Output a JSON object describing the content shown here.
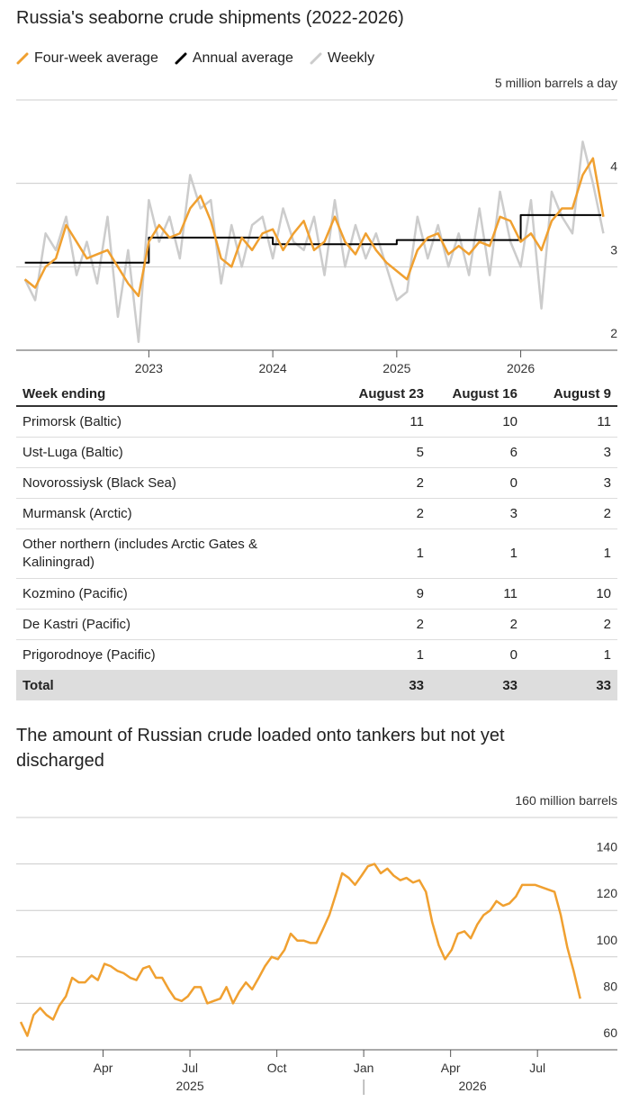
{
  "chart_data": [
    {
      "type": "line",
      "title": "Russia's seaborne crude shipments (2022-2026)",
      "legend": "top-left",
      "grid": true,
      "xlim": [
        2021.93,
        2026.78
      ],
      "xticks": [
        2023,
        2024,
        2025,
        2026
      ],
      "ylim": [
        2,
        5
      ],
      "yticks": [
        2,
        3,
        4,
        {
          "value": 5,
          "label": "5 million barrels a day"
        }
      ],
      "series": [
        {
          "name": "Four-week average",
          "color": "#f0a030",
          "x": [
            2022,
            2022.083,
            2022.167,
            2022.25,
            2022.333,
            2022.417,
            2022.5,
            2022.583,
            2022.667,
            2022.75,
            2022.833,
            2022.917,
            2023,
            2023.083,
            2023.167,
            2023.25,
            2023.333,
            2023.417,
            2023.5,
            2023.583,
            2023.667,
            2023.75,
            2023.833,
            2023.917,
            2024,
            2024.083,
            2024.167,
            2024.25,
            2024.333,
            2024.417,
            2024.5,
            2024.583,
            2024.667,
            2024.75,
            2024.833,
            2024.917,
            2025,
            2025.083,
            2025.167,
            2025.25,
            2025.333,
            2025.417,
            2025.5,
            2025.583,
            2025.667,
            2025.75,
            2025.833,
            2025.917,
            2026,
            2026.083,
            2026.167,
            2026.25,
            2026.333,
            2026.417,
            2026.5,
            2026.583,
            2026.667
          ],
          "values": [
            2.85,
            2.75,
            3.0,
            3.1,
            3.5,
            3.3,
            3.1,
            3.15,
            3.2,
            3.0,
            2.8,
            2.65,
            3.3,
            3.5,
            3.35,
            3.4,
            3.7,
            3.85,
            3.55,
            3.1,
            3.0,
            3.35,
            3.2,
            3.4,
            3.45,
            3.2,
            3.4,
            3.55,
            3.2,
            3.3,
            3.6,
            3.3,
            3.15,
            3.4,
            3.2,
            3.05,
            2.95,
            2.85,
            3.2,
            3.35,
            3.4,
            3.15,
            3.25,
            3.15,
            3.3,
            3.25,
            3.6,
            3.55,
            3.3,
            3.4,
            3.2,
            3.55,
            3.7,
            3.7,
            4.1,
            4.3,
            3.6
          ]
        },
        {
          "name": "Annual average",
          "color": "#000000",
          "x": [
            2022,
            2023,
            2023,
            2024,
            2024,
            2025,
            2025,
            2026,
            2026,
            2026.65
          ],
          "values": [
            3.05,
            3.05,
            3.35,
            3.35,
            3.27,
            3.27,
            3.32,
            3.32,
            3.62,
            3.62
          ]
        },
        {
          "name": "Weekly",
          "color": "#cccccc",
          "x": [
            2022,
            2022.083,
            2022.167,
            2022.25,
            2022.333,
            2022.417,
            2022.5,
            2022.583,
            2022.667,
            2022.75,
            2022.833,
            2022.917,
            2023,
            2023.083,
            2023.167,
            2023.25,
            2023.333,
            2023.417,
            2023.5,
            2023.583,
            2023.667,
            2023.75,
            2023.833,
            2023.917,
            2024,
            2024.083,
            2024.167,
            2024.25,
            2024.333,
            2024.417,
            2024.5,
            2024.583,
            2024.667,
            2024.75,
            2024.833,
            2024.917,
            2025,
            2025.083,
            2025.167,
            2025.25,
            2025.333,
            2025.417,
            2025.5,
            2025.583,
            2025.667,
            2025.75,
            2025.833,
            2025.917,
            2026,
            2026.083,
            2026.167,
            2026.25,
            2026.333,
            2026.417,
            2026.5,
            2026.583,
            2026.667
          ],
          "values": [
            2.85,
            2.6,
            3.4,
            3.2,
            3.6,
            2.9,
            3.3,
            2.8,
            3.6,
            2.4,
            3.2,
            2.1,
            3.8,
            3.3,
            3.6,
            3.1,
            4.1,
            3.7,
            3.8,
            2.8,
            3.5,
            3.0,
            3.5,
            3.6,
            3.1,
            3.7,
            3.3,
            3.2,
            3.6,
            2.9,
            3.8,
            3.0,
            3.5,
            3.1,
            3.4,
            3.0,
            2.6,
            2.7,
            3.6,
            3.1,
            3.5,
            3.0,
            3.4,
            2.9,
            3.7,
            2.9,
            3.9,
            3.3,
            3.0,
            3.8,
            2.5,
            3.9,
            3.6,
            3.4,
            4.5,
            4.0,
            3.4
          ]
        }
      ]
    },
    {
      "type": "line",
      "title": "The amount of Russian crude loaded onto tankers but not yet discharged",
      "grid": true,
      "xlim": [
        2025,
        2026.73
      ],
      "xticks": [
        {
          "value": 2025.25,
          "label": "Apr"
        },
        {
          "value": 2025.5,
          "label": "Jul"
        },
        {
          "value": 2025.75,
          "label": "Oct"
        },
        {
          "value": 2026,
          "label": "Jan"
        },
        {
          "value": 2026.25,
          "label": "Apr"
        },
        {
          "value": 2026.5,
          "label": "Jul"
        }
      ],
      "year_labels": [
        "2025",
        "2026"
      ],
      "ylim": [
        60,
        160
      ],
      "yticks": [
        60,
        80,
        100,
        120,
        140,
        {
          "value": 160,
          "label": "160 million barrels"
        }
      ],
      "series": [
        {
          "color": "#f0a030",
          "x": [
            2025.013,
            2025.032,
            2025.05,
            2025.069,
            2025.087,
            2025.106,
            2025.124,
            2025.143,
            2025.161,
            2025.18,
            2025.198,
            2025.217,
            2025.235,
            2025.254,
            2025.272,
            2025.291,
            2025.309,
            2025.328,
            2025.346,
            2025.365,
            2025.383,
            2025.402,
            2025.42,
            2025.439,
            2025.457,
            2025.476,
            2025.494,
            2025.513,
            2025.531,
            2025.55,
            2025.568,
            2025.587,
            2025.605,
            2025.624,
            2025.642,
            2025.661,
            2025.679,
            2025.698,
            2025.716,
            2025.735,
            2025.753,
            2025.772,
            2025.79,
            2025.809,
            2025.827,
            2025.846,
            2025.864,
            2025.883,
            2025.901,
            2025.92,
            2025.938,
            2025.957,
            2025.975,
            2025.994,
            2026.012,
            2026.031,
            2026.049,
            2026.068,
            2026.086,
            2026.105,
            2026.123,
            2026.142,
            2026.16,
            2026.179,
            2026.197,
            2026.216,
            2026.234,
            2026.253,
            2026.271,
            2026.29,
            2026.308,
            2026.327,
            2026.345,
            2026.364,
            2026.382,
            2026.401,
            2026.419,
            2026.438,
            2026.456,
            2026.475,
            2026.493,
            2026.512,
            2026.53,
            2026.549,
            2026.567,
            2026.586,
            2026.604,
            2026.623
          ],
          "values": [
            72,
            66,
            75,
            78,
            75,
            73,
            79,
            83,
            91,
            89,
            89,
            92,
            90,
            97,
            96,
            94,
            93,
            91,
            90,
            95,
            96,
            91,
            91,
            86,
            82,
            81,
            83,
            87,
            87,
            80,
            81,
            82,
            87,
            80,
            85,
            89,
            86,
            91,
            96,
            100,
            99,
            103,
            110,
            107,
            107,
            106,
            106,
            112,
            118,
            127,
            136,
            134,
            131,
            135,
            139,
            140,
            136,
            138,
            135,
            133,
            134,
            132,
            133,
            128,
            115,
            105,
            99,
            103,
            110,
            111,
            108,
            114,
            118,
            120,
            124,
            122,
            123,
            126,
            131,
            131,
            131,
            130,
            129,
            128,
            118,
            104,
            94,
            82
          ]
        }
      ]
    }
  ],
  "table": {
    "header": [
      "Week ending",
      "August 23",
      "August 16",
      "August 9"
    ],
    "rows": [
      [
        "Primorsk (Baltic)",
        11,
        10,
        11
      ],
      [
        "Ust-Luga (Baltic)",
        5,
        6,
        3
      ],
      [
        "Novorossiysk (Black Sea)",
        2,
        0,
        3
      ],
      [
        "Murmansk (Arctic)",
        2,
        3,
        2
      ],
      [
        "Other northern (includes Arctic Gates & Kaliningrad)",
        1,
        1,
        1
      ],
      [
        "Kozmino (Pacific)",
        9,
        11,
        10
      ],
      [
        "De Kastri (Pacific)",
        2,
        2,
        2
      ],
      [
        "Prigorodnoye (Pacific)",
        1,
        0,
        1
      ]
    ],
    "total": [
      "Total",
      33,
      33,
      33
    ]
  }
}
